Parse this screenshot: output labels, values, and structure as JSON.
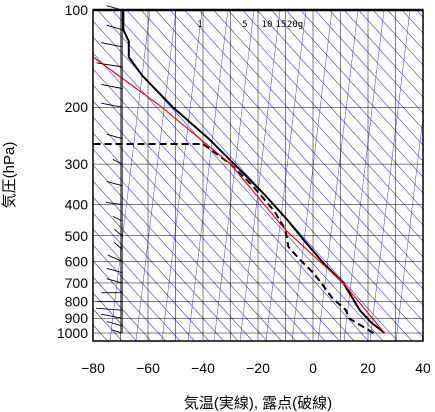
{
  "chart_data": {
    "type": "line",
    "xlabel": "気温(実線), 露点(破線)",
    "ylabel": "気圧(hPa)",
    "xlim": [
      -80,
      40
    ],
    "ylim": [
      1050,
      100
    ],
    "y_scale": "log",
    "x_ticks": [
      -80,
      -60,
      -40,
      -20,
      0,
      20,
      40
    ],
    "y_ticks": [
      100,
      200,
      300,
      400,
      500,
      600,
      700,
      800,
      900,
      1000
    ],
    "mixing_ratio_labels": [
      "1",
      "5",
      "10",
      "15",
      "20g"
    ],
    "grid": true,
    "colors": {
      "temperature": "#000000",
      "dewpoint": "#000000",
      "reference": "#ff0000",
      "background_lines": "#3a3adc",
      "grid": "#000000"
    },
    "series": [
      {
        "key": "temperature",
        "style": "solid",
        "points": [
          {
            "t": 26,
            "p": 1000
          },
          {
            "t": 21,
            "p": 925
          },
          {
            "t": 17,
            "p": 850
          },
          {
            "t": 11,
            "p": 700
          },
          {
            "t": 4,
            "p": 610
          },
          {
            "t": -3,
            "p": 520
          },
          {
            "t": -9,
            "p": 450
          },
          {
            "t": -18,
            "p": 370
          },
          {
            "t": -27,
            "p": 310
          },
          {
            "t": -38,
            "p": 250
          },
          {
            "t": -51,
            "p": 200
          },
          {
            "t": -62,
            "p": 160
          },
          {
            "t": -67,
            "p": 140
          },
          {
            "t": -67,
            "p": 125
          },
          {
            "t": -69,
            "p": 115
          },
          {
            "t": -69,
            "p": 100
          }
        ]
      },
      {
        "key": "dewpoint",
        "style": "dashed",
        "points": [
          {
            "t": 22,
            "p": 1000
          },
          {
            "t": 13,
            "p": 900
          },
          {
            "t": 12,
            "p": 850
          },
          {
            "t": 7,
            "p": 780
          },
          {
            "t": 3,
            "p": 700
          },
          {
            "t": 0,
            "p": 650
          },
          {
            "t": -5,
            "p": 590
          },
          {
            "t": -9,
            "p": 540
          },
          {
            "t": -10,
            "p": 480
          },
          {
            "t": -14,
            "p": 420
          },
          {
            "t": -22,
            "p": 350
          },
          {
            "t": -30,
            "p": 300
          },
          {
            "t": -40,
            "p": 260
          },
          {
            "t": -80,
            "p": 260
          }
        ]
      },
      {
        "key": "reference",
        "style": "solid",
        "points": [
          {
            "t": 26,
            "p": 1000
          },
          {
            "t": 11,
            "p": 700
          },
          {
            "t": -10,
            "p": 480
          },
          {
            "t": -30,
            "p": 300
          },
          {
            "t": -55,
            "p": 200
          },
          {
            "t": -85,
            "p": 130
          }
        ]
      }
    ],
    "wind_barbs": [
      {
        "p": 1000,
        "u": 5,
        "v": 2
      },
      {
        "p": 950,
        "u": 10,
        "v": 5
      },
      {
        "p": 900,
        "u": 15,
        "v": 5
      },
      {
        "p": 850,
        "u": 20,
        "v": 0
      },
      {
        "p": 800,
        "u": 20,
        "v": -5
      },
      {
        "p": 750,
        "u": 15,
        "v": -5
      },
      {
        "p": 700,
        "u": 10,
        "v": 5
      },
      {
        "p": 650,
        "u": 10,
        "v": 5
      },
      {
        "p": 600,
        "u": 10,
        "v": 10
      },
      {
        "p": 550,
        "u": 5,
        "v": 10
      },
      {
        "p": 500,
        "u": 5,
        "v": 10
      },
      {
        "p": 450,
        "u": 5,
        "v": 5
      },
      {
        "p": 400,
        "u": 10,
        "v": 0
      },
      {
        "p": 350,
        "u": 10,
        "v": 5
      },
      {
        "p": 300,
        "u": 5,
        "v": 5
      },
      {
        "p": 250,
        "u": 10,
        "v": 5
      },
      {
        "p": 200,
        "u": 15,
        "v": 5
      },
      {
        "p": 175,
        "u": 15,
        "v": 5
      },
      {
        "p": 150,
        "u": 20,
        "v": 5
      },
      {
        "p": 130,
        "u": 15,
        "v": 5
      },
      {
        "p": 115,
        "u": 10,
        "v": 5
      },
      {
        "p": 100,
        "u": 10,
        "v": 5
      }
    ]
  }
}
